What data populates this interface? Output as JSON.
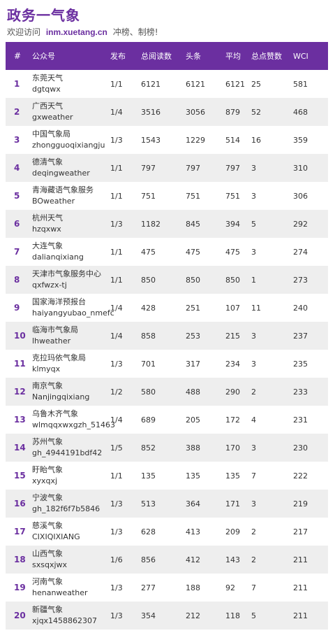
{
  "header": {
    "title": "政务一气象",
    "subtitle_prefix": "欢迎访问",
    "site": "inm.xuetang.cn",
    "subtitle_suffix": "冲榜、制榜!"
  },
  "table": {
    "columns": [
      "#",
      "公众号",
      "发布",
      "总阅读数",
      "头条",
      "平均",
      "总点赞数",
      "WCI"
    ],
    "rows": [
      {
        "rank": "1",
        "name": "东莞天气",
        "id": "dgtqwx",
        "pub": "1/1",
        "total": "6121",
        "head": "6121",
        "avg": "6121",
        "likes": "25",
        "wci": "581"
      },
      {
        "rank": "2",
        "name": "广西天气",
        "id": "gxweather",
        "pub": "1/4",
        "total": "3516",
        "head": "3056",
        "avg": "879",
        "likes": "52",
        "wci": "468"
      },
      {
        "rank": "3",
        "name": "中国气象局",
        "id": "zhongguoqixiangju",
        "pub": "1/3",
        "total": "1543",
        "head": "1229",
        "avg": "514",
        "likes": "16",
        "wci": "359"
      },
      {
        "rank": "4",
        "name": "德清气象",
        "id": "deqingweather",
        "pub": "1/1",
        "total": "797",
        "head": "797",
        "avg": "797",
        "likes": "3",
        "wci": "310"
      },
      {
        "rank": "5",
        "name": "青海藏语气象服务",
        "id": "BOweather",
        "pub": "1/1",
        "total": "751",
        "head": "751",
        "avg": "751",
        "likes": "3",
        "wci": "306"
      },
      {
        "rank": "6",
        "name": "杭州天气",
        "id": "hzqxwx",
        "pub": "1/3",
        "total": "1182",
        "head": "845",
        "avg": "394",
        "likes": "5",
        "wci": "292"
      },
      {
        "rank": "7",
        "name": "大连气象",
        "id": "dalianqixiang",
        "pub": "1/1",
        "total": "475",
        "head": "475",
        "avg": "475",
        "likes": "3",
        "wci": "274"
      },
      {
        "rank": "8",
        "name": "天津市气象服务中心",
        "id": "qxfwzx-tj",
        "pub": "1/1",
        "total": "850",
        "head": "850",
        "avg": "850",
        "likes": "1",
        "wci": "273"
      },
      {
        "rank": "9",
        "name": "国家海洋预报台",
        "id": "haiyangyubao_nmefc",
        "pub": "1/4",
        "total": "428",
        "head": "251",
        "avg": "107",
        "likes": "11",
        "wci": "240"
      },
      {
        "rank": "10",
        "name": "临海市气象局",
        "id": "lhweather",
        "pub": "1/4",
        "total": "858",
        "head": "253",
        "avg": "215",
        "likes": "3",
        "wci": "237"
      },
      {
        "rank": "11",
        "name": "克拉玛依气象局",
        "id": "klmyqx",
        "pub": "1/3",
        "total": "701",
        "head": "317",
        "avg": "234",
        "likes": "3",
        "wci": "235"
      },
      {
        "rank": "12",
        "name": "南京气象",
        "id": "Nanjingqixiang",
        "pub": "1/2",
        "total": "580",
        "head": "488",
        "avg": "290",
        "likes": "2",
        "wci": "233"
      },
      {
        "rank": "13",
        "name": "乌鲁木齐气象",
        "id": "wlmqqxwxgzh_51463",
        "pub": "1/4",
        "total": "689",
        "head": "205",
        "avg": "172",
        "likes": "4",
        "wci": "231"
      },
      {
        "rank": "14",
        "name": "苏州气象",
        "id": "gh_4944191bdf42",
        "pub": "1/5",
        "total": "852",
        "head": "388",
        "avg": "170",
        "likes": "3",
        "wci": "230"
      },
      {
        "rank": "15",
        "name": "盱眙气象",
        "id": "xyxqxj",
        "pub": "1/1",
        "total": "135",
        "head": "135",
        "avg": "135",
        "likes": "7",
        "wci": "222"
      },
      {
        "rank": "16",
        "name": "宁波气象",
        "id": "gh_182f6f7b5846",
        "pub": "1/3",
        "total": "513",
        "head": "364",
        "avg": "171",
        "likes": "3",
        "wci": "219"
      },
      {
        "rank": "17",
        "name": "慈溪气象",
        "id": "CIXIQIXIANG",
        "pub": "1/3",
        "total": "628",
        "head": "413",
        "avg": "209",
        "likes": "2",
        "wci": "217"
      },
      {
        "rank": "18",
        "name": "山西气象",
        "id": "sxsqxjwx",
        "pub": "1/6",
        "total": "856",
        "head": "412",
        "avg": "143",
        "likes": "2",
        "wci": "211"
      },
      {
        "rank": "19",
        "name": "河南气象",
        "id": "henanweather",
        "pub": "1/3",
        "total": "277",
        "head": "188",
        "avg": "92",
        "likes": "7",
        "wci": "211"
      },
      {
        "rank": "20",
        "name": "新疆气象",
        "id": "xjqx1458862307",
        "pub": "1/3",
        "total": "354",
        "head": "212",
        "avg": "118",
        "likes": "5",
        "wci": "211"
      }
    ]
  },
  "colors": {
    "accent": "#6b2fa0",
    "row_alt": "#eeeeee"
  }
}
